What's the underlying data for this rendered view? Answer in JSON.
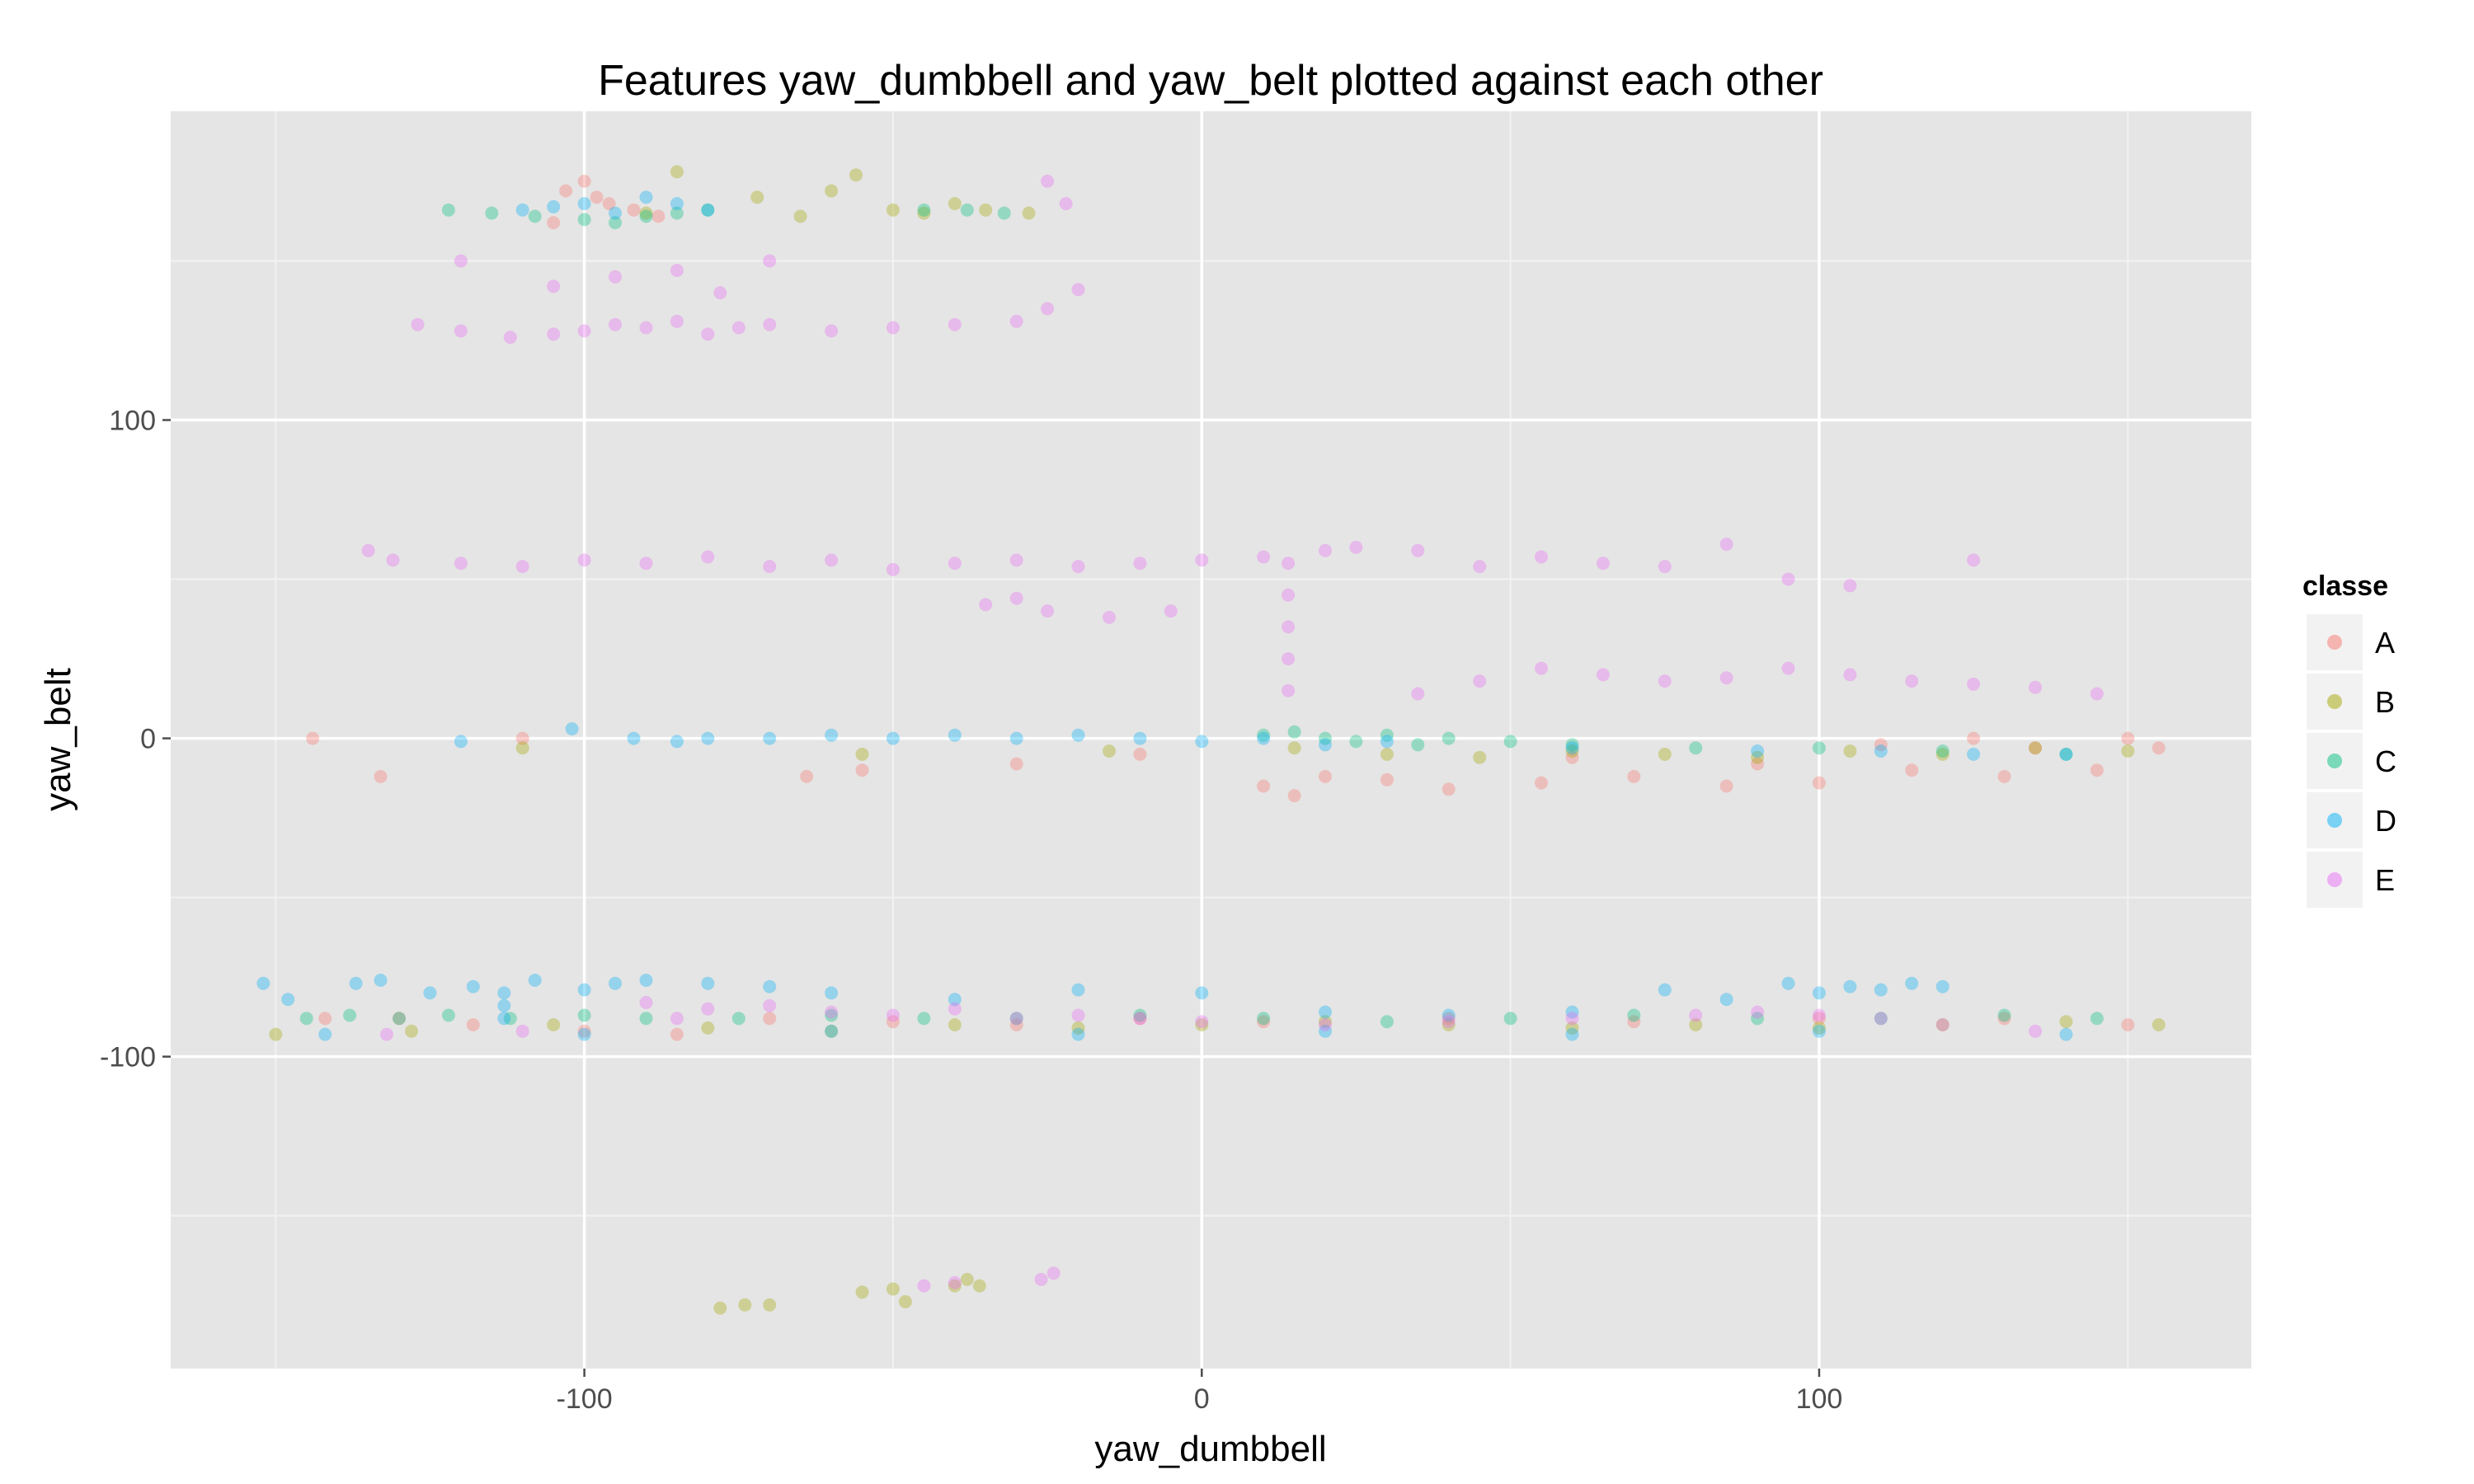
{
  "chart_data": {
    "type": "scatter",
    "title": "Features  yaw_dumbbell  and  yaw_belt  plotted against each other",
    "xlabel": "yaw_dumbbell",
    "ylabel": "yaw_belt",
    "xlim": [
      -167,
      170
    ],
    "ylim": [
      -198,
      197
    ],
    "x_ticks": [
      -100,
      0,
      100
    ],
    "x_minor_ticks": [
      -150,
      -50,
      50,
      150
    ],
    "y_ticks": [
      -100,
      0,
      100
    ],
    "y_minor_ticks": [
      -150,
      -50,
      50,
      150
    ],
    "tick_label_text": {
      "x": [
        "-100",
        "0",
        "100"
      ],
      "y": [
        "-100",
        "0",
        "100"
      ]
    },
    "grid": true,
    "legend": {
      "title": "classe",
      "position": "right",
      "entries": [
        "A",
        "B",
        "C",
        "D",
        "E"
      ]
    },
    "colors": {
      "A": "#F8766D",
      "B": "#A3A500",
      "C": "#00BF7D",
      "D": "#00B0F6",
      "E": "#E76BF3",
      "panel_background": "#E5E5E5",
      "grid_major": "#FFFFFF",
      "grid_minor": "#F2F2F2"
    },
    "point_opacity": 0.35,
    "series": [
      {
        "name": "A",
        "points": [
          [
            -144,
            0
          ],
          [
            -133,
            -12
          ],
          [
            -110,
            0
          ],
          [
            -64,
            -12
          ],
          [
            -55,
            -10
          ],
          [
            -30,
            -8
          ],
          [
            -10,
            -5
          ],
          [
            10,
            -15
          ],
          [
            20,
            -12
          ],
          [
            30,
            -13
          ],
          [
            40,
            -16
          ],
          [
            55,
            -14
          ],
          [
            70,
            -12
          ],
          [
            85,
            -15
          ],
          [
            100,
            -14
          ],
          [
            115,
            -10
          ],
          [
            130,
            -12
          ],
          [
            145,
            -10
          ],
          [
            150,
            0
          ],
          [
            155,
            -3
          ],
          [
            -142,
            -88
          ],
          [
            -130,
            -88
          ],
          [
            -118,
            -90
          ],
          [
            -100,
            -92
          ],
          [
            -85,
            -93
          ],
          [
            -70,
            -88
          ],
          [
            -50,
            -89
          ],
          [
            -30,
            -90
          ],
          [
            -10,
            -88
          ],
          [
            10,
            -89
          ],
          [
            40,
            -88
          ],
          [
            70,
            -89
          ],
          [
            100,
            -88
          ],
          [
            130,
            -88
          ],
          [
            150,
            -90
          ],
          [
            -103,
            172
          ],
          [
            -100,
            175
          ],
          [
            -98,
            170
          ],
          [
            -96,
            168
          ],
          [
            -92,
            166
          ],
          [
            -88,
            164
          ],
          [
            -105,
            162
          ],
          [
            110,
            -2
          ],
          [
            125,
            0
          ],
          [
            135,
            -3
          ],
          [
            15,
            -18
          ],
          [
            60,
            -6
          ],
          [
            90,
            -8
          ]
        ]
      },
      {
        "name": "B",
        "points": [
          [
            -150,
            -93
          ],
          [
            -128,
            -92
          ],
          [
            -105,
            -90
          ],
          [
            -80,
            -91
          ],
          [
            -60,
            -92
          ],
          [
            -40,
            -90
          ],
          [
            -20,
            -91
          ],
          [
            0,
            -90
          ],
          [
            20,
            -89
          ],
          [
            40,
            -90
          ],
          [
            60,
            -91
          ],
          [
            80,
            -90
          ],
          [
            100,
            -91
          ],
          [
            120,
            -90
          ],
          [
            140,
            -89
          ],
          [
            155,
            -90
          ],
          [
            -110,
            -3
          ],
          [
            -55,
            -5
          ],
          [
            -15,
            -4
          ],
          [
            15,
            -3
          ],
          [
            30,
            -5
          ],
          [
            45,
            -6
          ],
          [
            60,
            -4
          ],
          [
            75,
            -5
          ],
          [
            90,
            -6
          ],
          [
            105,
            -4
          ],
          [
            120,
            -5
          ],
          [
            135,
            -3
          ],
          [
            150,
            -4
          ],
          [
            -85,
            178
          ],
          [
            -72,
            170
          ],
          [
            -60,
            172
          ],
          [
            -56,
            177
          ],
          [
            -50,
            166
          ],
          [
            -45,
            165
          ],
          [
            -40,
            168
          ],
          [
            -35,
            166
          ],
          [
            -28,
            165
          ],
          [
            -90,
            165
          ],
          [
            -65,
            164
          ],
          [
            -78,
            -179
          ],
          [
            -74,
            -178
          ],
          [
            -70,
            -178
          ],
          [
            -55,
            -174
          ],
          [
            -50,
            -173
          ],
          [
            -48,
            -177
          ],
          [
            -40,
            -172
          ],
          [
            -38,
            -170
          ],
          [
            -36,
            -172
          ]
        ]
      },
      {
        "name": "C",
        "points": [
          [
            -145,
            -88
          ],
          [
            -138,
            -87
          ],
          [
            -130,
            -88
          ],
          [
            -122,
            -87
          ],
          [
            -112,
            -88
          ],
          [
            -100,
            -87
          ],
          [
            -90,
            -88
          ],
          [
            -75,
            -88
          ],
          [
            -60,
            -87
          ],
          [
            -45,
            -88
          ],
          [
            -30,
            -88
          ],
          [
            -10,
            -87
          ],
          [
            10,
            -88
          ],
          [
            30,
            -89
          ],
          [
            50,
            -88
          ],
          [
            70,
            -87
          ],
          [
            90,
            -88
          ],
          [
            110,
            -88
          ],
          [
            130,
            -87
          ],
          [
            145,
            -88
          ],
          [
            -122,
            166
          ],
          [
            -115,
            165
          ],
          [
            -108,
            164
          ],
          [
            -100,
            163
          ],
          [
            -95,
            162
          ],
          [
            -90,
            164
          ],
          [
            -85,
            165
          ],
          [
            -80,
            166
          ],
          [
            -45,
            166
          ],
          [
            -38,
            166
          ],
          [
            -32,
            165
          ],
          [
            10,
            1
          ],
          [
            15,
            2
          ],
          [
            20,
            0
          ],
          [
            25,
            -1
          ],
          [
            30,
            1
          ],
          [
            35,
            -2
          ],
          [
            40,
            0
          ],
          [
            50,
            -1
          ],
          [
            60,
            -2
          ],
          [
            80,
            -3
          ],
          [
            100,
            -3
          ],
          [
            120,
            -4
          ],
          [
            140,
            -5
          ]
        ]
      },
      {
        "name": "D",
        "points": [
          [
            -152,
            -77
          ],
          [
            -148,
            -82
          ],
          [
            -142,
            -93
          ],
          [
            -137,
            -77
          ],
          [
            -133,
            -76
          ],
          [
            -125,
            -80
          ],
          [
            -118,
            -78
          ],
          [
            -113,
            -84
          ],
          [
            -113,
            -88
          ],
          [
            -113,
            -80
          ],
          [
            -108,
            -76
          ],
          [
            -100,
            -79
          ],
          [
            -95,
            -77
          ],
          [
            -90,
            -76
          ],
          [
            -80,
            -77
          ],
          [
            -70,
            -78
          ],
          [
            -60,
            -80
          ],
          [
            -40,
            -82
          ],
          [
            -20,
            -79
          ],
          [
            0,
            -80
          ],
          [
            20,
            -86
          ],
          [
            40,
            -87
          ],
          [
            60,
            -86
          ],
          [
            75,
            -79
          ],
          [
            85,
            -82
          ],
          [
            95,
            -77
          ],
          [
            100,
            -80
          ],
          [
            105,
            -78
          ],
          [
            110,
            -79
          ],
          [
            115,
            -77
          ],
          [
            120,
            -78
          ],
          [
            -120,
            -1
          ],
          [
            -102,
            3
          ],
          [
            -92,
            0
          ],
          [
            -85,
            -1
          ],
          [
            -80,
            0
          ],
          [
            -70,
            0
          ],
          [
            -60,
            1
          ],
          [
            -50,
            0
          ],
          [
            -40,
            1
          ],
          [
            -30,
            0
          ],
          [
            -20,
            1
          ],
          [
            -10,
            0
          ],
          [
            0,
            -1
          ],
          [
            10,
            0
          ],
          [
            20,
            -2
          ],
          [
            30,
            -1
          ],
          [
            60,
            -3
          ],
          [
            90,
            -4
          ],
          [
            110,
            -4
          ],
          [
            125,
            -5
          ],
          [
            140,
            -5
          ],
          [
            -110,
            166
          ],
          [
            -105,
            167
          ],
          [
            -100,
            168
          ],
          [
            -95,
            165
          ],
          [
            -90,
            170
          ],
          [
            -85,
            168
          ],
          [
            -80,
            166
          ],
          [
            -100,
            -93
          ],
          [
            -60,
            -92
          ],
          [
            -20,
            -93
          ],
          [
            20,
            -92
          ],
          [
            60,
            -93
          ],
          [
            100,
            -92
          ],
          [
            140,
            -93
          ]
        ]
      },
      {
        "name": "E",
        "points": [
          [
            -135,
            59
          ],
          [
            -131,
            56
          ],
          [
            -120,
            55
          ],
          [
            -110,
            54
          ],
          [
            -100,
            56
          ],
          [
            -90,
            55
          ],
          [
            -80,
            57
          ],
          [
            -70,
            54
          ],
          [
            -60,
            56
          ],
          [
            -50,
            53
          ],
          [
            -40,
            55
          ],
          [
            -30,
            56
          ],
          [
            -20,
            54
          ],
          [
            -10,
            55
          ],
          [
            0,
            56
          ],
          [
            10,
            57
          ],
          [
            20,
            59
          ],
          [
            25,
            60
          ],
          [
            35,
            59
          ],
          [
            45,
            54
          ],
          [
            55,
            57
          ],
          [
            65,
            55
          ],
          [
            75,
            54
          ],
          [
            85,
            61
          ],
          [
            95,
            50
          ],
          [
            105,
            48
          ],
          [
            125,
            56
          ],
          [
            -35,
            42
          ],
          [
            -30,
            44
          ],
          [
            -25,
            40
          ],
          [
            -15,
            38
          ],
          [
            -5,
            40
          ],
          [
            14,
            55
          ],
          [
            14,
            45
          ],
          [
            14,
            35
          ],
          [
            14,
            25
          ],
          [
            14,
            15
          ],
          [
            35,
            14
          ],
          [
            45,
            18
          ],
          [
            55,
            22
          ],
          [
            65,
            20
          ],
          [
            75,
            18
          ],
          [
            85,
            19
          ],
          [
            95,
            22
          ],
          [
            105,
            20
          ],
          [
            115,
            18
          ],
          [
            125,
            17
          ],
          [
            135,
            16
          ],
          [
            145,
            14
          ],
          [
            -127,
            130
          ],
          [
            -120,
            128
          ],
          [
            -112,
            126
          ],
          [
            -105,
            127
          ],
          [
            -100,
            128
          ],
          [
            -95,
            130
          ],
          [
            -90,
            129
          ],
          [
            -85,
            131
          ],
          [
            -80,
            127
          ],
          [
            -75,
            129
          ],
          [
            -70,
            130
          ],
          [
            -60,
            128
          ],
          [
            -50,
            129
          ],
          [
            -40,
            130
          ],
          [
            -30,
            131
          ],
          [
            -25,
            135
          ],
          [
            -20,
            141
          ],
          [
            -25,
            175
          ],
          [
            -22,
            168
          ],
          [
            -95,
            145
          ],
          [
            -85,
            147
          ],
          [
            -78,
            140
          ],
          [
            -70,
            150
          ],
          [
            -120,
            150
          ],
          [
            -105,
            142
          ],
          [
            -132,
            -93
          ],
          [
            -110,
            -92
          ],
          [
            -90,
            -83
          ],
          [
            -85,
            -88
          ],
          [
            -80,
            -85
          ],
          [
            -70,
            -84
          ],
          [
            -60,
            -86
          ],
          [
            -50,
            -87
          ],
          [
            -40,
            -85
          ],
          [
            -30,
            -88
          ],
          [
            -20,
            -87
          ],
          [
            -10,
            -88
          ],
          [
            0,
            -89
          ],
          [
            20,
            -90
          ],
          [
            40,
            -89
          ],
          [
            60,
            -88
          ],
          [
            80,
            -87
          ],
          [
            90,
            -86
          ],
          [
            100,
            -87
          ],
          [
            110,
            -88
          ],
          [
            120,
            -90
          ],
          [
            135,
            -92
          ],
          [
            -45,
            -172
          ],
          [
            -40,
            -171
          ],
          [
            -26,
            -170
          ],
          [
            -24,
            -168
          ]
        ]
      }
    ]
  }
}
